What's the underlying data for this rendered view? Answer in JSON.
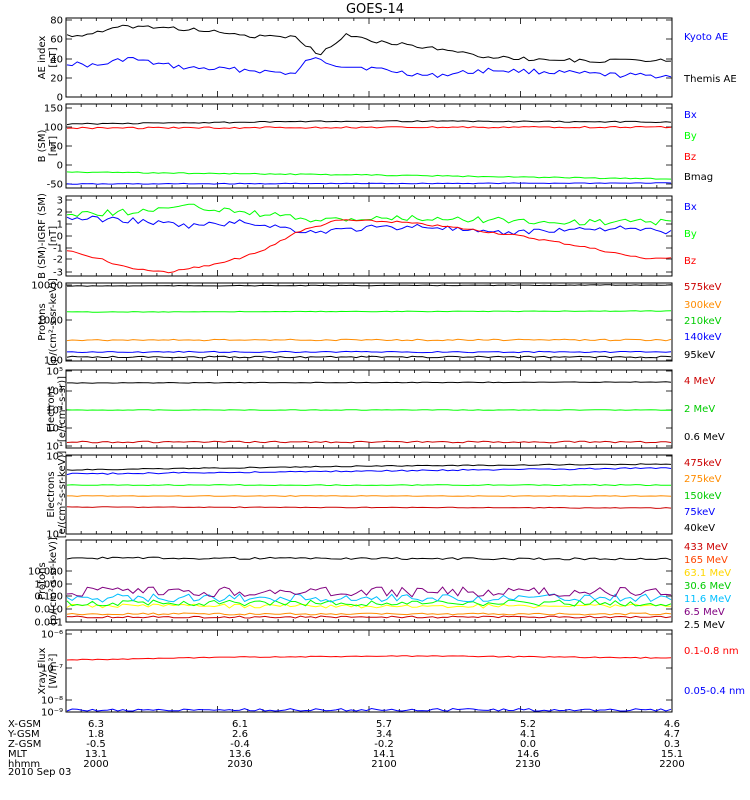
{
  "title": "GOES-14",
  "footer_date": "2010 Sep 03",
  "ephemeris": {
    "labels": [
      "X-GSM",
      "Y-GSM",
      "Z-GSM",
      "MLT",
      "hhmm"
    ],
    "columns": [
      [
        "6.3",
        "1.8",
        "-0.5",
        "13.1",
        "2000"
      ],
      [
        "6.1",
        "2.6",
        "-0.4",
        "13.6",
        "2030"
      ],
      [
        "5.7",
        "3.4",
        "-0.2",
        "14.1",
        "2100"
      ],
      [
        "5.2",
        "4.1",
        "0.0",
        "14.6",
        "2130"
      ],
      [
        "4.6",
        "4.7",
        "0.3",
        "15.1",
        "2200"
      ]
    ]
  },
  "chart_data": [
    {
      "type": "line",
      "ylabel": [
        "AE index",
        "[nT]"
      ],
      "ytick_labels": [
        "0",
        "20",
        "40",
        "60",
        "80"
      ],
      "ylim": [
        0,
        85
      ],
      "scale": "linear",
      "x": [
        2000,
        2200
      ],
      "series": [
        {
          "name": "Kyoto AE",
          "color": "#0000ff",
          "profile": "ae_kyoto"
        },
        {
          "name": "Themis AE",
          "color": "#000000",
          "profile": "ae_themis"
        }
      ]
    },
    {
      "type": "line",
      "ylabel": [
        "B (SM)",
        "[nT]"
      ],
      "ytick_labels": [
        "-50",
        "0",
        "50",
        "100",
        "150"
      ],
      "ylim": [
        -60,
        155
      ],
      "scale": "linear",
      "series": [
        {
          "name": "Bx",
          "color": "#0000ff",
          "profile": "b_x"
        },
        {
          "name": "By",
          "color": "#00ff00",
          "profile": "b_y"
        },
        {
          "name": "Bz",
          "color": "#ff0000",
          "profile": "b_z"
        },
        {
          "name": "Bmag",
          "color": "#000000",
          "profile": "b_mag"
        }
      ]
    },
    {
      "type": "line",
      "ylabel": [
        "B (SM)-IGRF (SM)",
        "[nT]"
      ],
      "ytick_labels": [
        "-3",
        "-2",
        "-1",
        "0",
        "1",
        "2",
        "3"
      ],
      "ylim": [
        -3.2,
        3.2
      ],
      "scale": "linear",
      "series": [
        {
          "name": "Bx",
          "color": "#0000ff",
          "profile": "d_x"
        },
        {
          "name": "By",
          "color": "#00ff00",
          "profile": "d_y"
        },
        {
          "name": "Bz",
          "color": "#ff0000",
          "profile": "d_z"
        }
      ]
    },
    {
      "type": "line",
      "ylabel": [
        "Protons",
        "[p/(cm²-s-sr-keV)]"
      ],
      "ytick_labels": [
        "100",
        "1000",
        "10000"
      ],
      "ylim": [
        100,
        10000
      ],
      "scale": "log",
      "series": [
        {
          "name": "575keV",
          "color": "#000000",
          "profile": "p_575"
        },
        {
          "name": "300keV",
          "color": "#ff8c00",
          "profile": "p_300"
        },
        {
          "name": "210keV",
          "color": "#00ff00",
          "profile": "p_210"
        },
        {
          "name": "140keV",
          "color": "#0000ff",
          "profile": "p_140"
        },
        {
          "name": "95keV",
          "color": "#000000",
          "profile": "p_95"
        }
      ],
      "legend_colors": [
        "#cc0000",
        "#ff8c00",
        "#00cc00",
        "#0000ff",
        "#000000"
      ]
    },
    {
      "type": "line",
      "ylabel": [
        "Electrons",
        "[e/(cm²-s-sr)]"
      ],
      "ytick_labels": [
        "10¹",
        "10²",
        "10³",
        "10⁴",
        "10⁵"
      ],
      "ylim": [
        10,
        100000
      ],
      "scale": "log",
      "series": [
        {
          "name": "4 MeV",
          "color": "#cc0000",
          "profile": "e_4"
        },
        {
          "name": "2 MeV",
          "color": "#00ff00",
          "profile": "e_2"
        },
        {
          "name": "0.6 MeV",
          "color": "#000000",
          "profile": "e_06"
        }
      ],
      "legend_colors": [
        "#cc0000",
        "#00cc00",
        "#000000"
      ]
    },
    {
      "type": "line",
      "ylabel": [
        "Electrons",
        "[e/(cm²-s-sr-keV)]"
      ],
      "ytick_labels": [
        "10⁴",
        "10⁵"
      ],
      "ylim": [
        10000,
        100000
      ],
      "scale": "log",
      "series": [
        {
          "name": "475keV",
          "color": "#cc0000",
          "profile": "el_475"
        },
        {
          "name": "275keV",
          "color": "#ff8c00",
          "profile": "el_275"
        },
        {
          "name": "150keV",
          "color": "#00ff00",
          "profile": "el_150"
        },
        {
          "name": "75keV",
          "color": "#0000ff",
          "profile": "el_75"
        },
        {
          "name": "40keV",
          "color": "#000000",
          "profile": "el_40"
        }
      ],
      "legend_colors": [
        "#cc0000",
        "#ff8c00",
        "#00cc00",
        "#0000ff",
        "#000000"
      ]
    },
    {
      "type": "line",
      "ylabel": [
        "Protons",
        "[p/(cm²-s-sr-keV)]"
      ],
      "ytick_labels": [
        "0.001",
        "0.010",
        "0.100",
        "1.000",
        "10.000"
      ],
      "ylim": [
        0.0006,
        80
      ],
      "scale": "log",
      "series": [
        {
          "name": "433 MeV",
          "color": "#cc0000",
          "profile": "hp_433"
        },
        {
          "name": "165 MeV",
          "color": "#ff8c00",
          "profile": "hp_165"
        },
        {
          "name": "63.1 MeV",
          "color": "#ffff00",
          "profile": "hp_63"
        },
        {
          "name": "30.6 MeV",
          "color": "#00ff00",
          "profile": "hp_30"
        },
        {
          "name": "11.6 MeV",
          "color": "#00bfff",
          "profile": "hp_11"
        },
        {
          "name": "6.5 MeV",
          "color": "#800080",
          "profile": "hp_6"
        },
        {
          "name": "2.5 MeV",
          "color": "#000000",
          "profile": "hp_2"
        }
      ],
      "legend_colors": [
        "#cc0000",
        "#ff4500",
        "#ffd700",
        "#00cc00",
        "#00bfff",
        "#800080",
        "#000000"
      ]
    },
    {
      "type": "line",
      "ylabel": [
        "Xray Flux",
        "[W/m²]"
      ],
      "ytick_labels": [
        "10⁻⁹",
        "10⁻⁸",
        "10⁻⁷",
        "10⁻⁶"
      ],
      "ylim": [
        7e-10,
        1e-08
      ],
      "scale": "log",
      "series": [
        {
          "name": "0.1-0.8 nm",
          "color": "#ff0000",
          "profile": "x_long"
        },
        {
          "name": "0.05-0.4 nm",
          "color": "#0000ff",
          "profile": "x_short"
        }
      ],
      "legend_colors": [
        "#ff0000",
        "#0000ff"
      ]
    }
  ]
}
